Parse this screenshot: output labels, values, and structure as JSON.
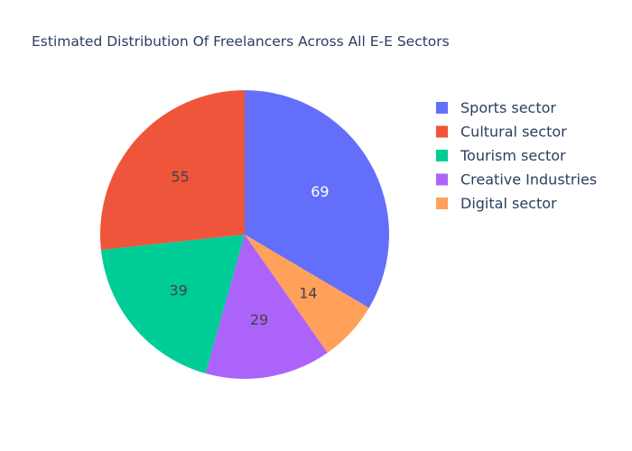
{
  "chart_data": {
    "type": "pie",
    "title": "Estimated Distribution Of Freelancers Across All E-E Sectors",
    "categories": [
      "Sports sector",
      "Cultural sector",
      "Tourism sector",
      "Creative Industries",
      "Digital sector"
    ],
    "values": [
      69,
      55,
      39,
      29,
      14
    ],
    "colors": [
      "#636efa",
      "#ef553b",
      "#00cc96",
      "#ab63fa",
      "#ffa15a"
    ],
    "label_colors": [
      "#ffffff",
      "#444444",
      "#444444",
      "#444444",
      "#444444"
    ],
    "slice_order": [
      "Sports sector",
      "Digital sector",
      "Creative Industries",
      "Tourism sector",
      "Cultural sector"
    ],
    "direction": "clockwise",
    "start_angle": "top",
    "legend": {
      "position": "top-right",
      "items": [
        "Sports sector",
        "Cultural sector",
        "Tourism sector",
        "Creative Industries",
        "Digital sector"
      ]
    }
  }
}
